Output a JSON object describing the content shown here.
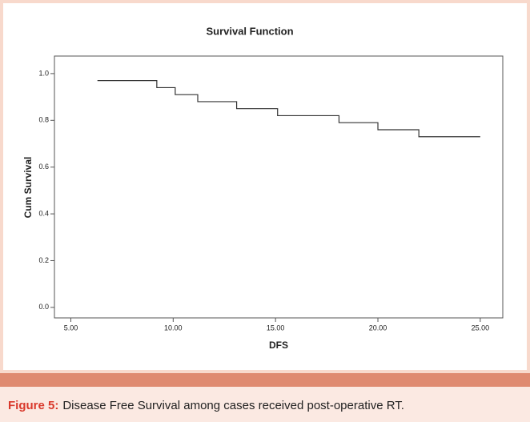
{
  "chart_data": {
    "type": "line",
    "title": "Survival Function",
    "x_label": "DFS",
    "y_label": "Cum Survival",
    "x": [
      6.3,
      9.2,
      9.2,
      10.1,
      10.1,
      11.2,
      11.2,
      13.1,
      13.1,
      15.1,
      15.1,
      18.1,
      18.1,
      20.0,
      20.0,
      22.0,
      22.0,
      25.0
    ],
    "series": [
      {
        "name": "Survival Function",
        "color": "#333333",
        "values": [
          0.97,
          0.97,
          0.94,
          0.94,
          0.91,
          0.91,
          0.88,
          0.88,
          0.85,
          0.85,
          0.82,
          0.82,
          0.79,
          0.79,
          0.76,
          0.76,
          0.73,
          0.73
        ]
      }
    ],
    "xlim": [
      4.2,
      26.1
    ],
    "ylim": [
      -0.045,
      1.075
    ],
    "xticks": [
      {
        "value": 5,
        "label": "5.00"
      },
      {
        "value": 10,
        "label": "10.00"
      },
      {
        "value": 15,
        "label": "15.00"
      },
      {
        "value": 20,
        "label": "20.00"
      },
      {
        "value": 25,
        "label": "25.00"
      }
    ],
    "yticks": [
      {
        "value": 0,
        "label": "0.0"
      },
      {
        "value": 0.2,
        "label": "0.2"
      },
      {
        "value": 0.4,
        "label": "0.4"
      },
      {
        "value": 0.6,
        "label": "0.6"
      },
      {
        "value": 0.8,
        "label": "0.8"
      },
      {
        "value": 1,
        "label": "1.0"
      }
    ]
  },
  "caption": {
    "label": "Figure 5:",
    "text": "Disease Free Survival among cases received post-operative RT."
  }
}
